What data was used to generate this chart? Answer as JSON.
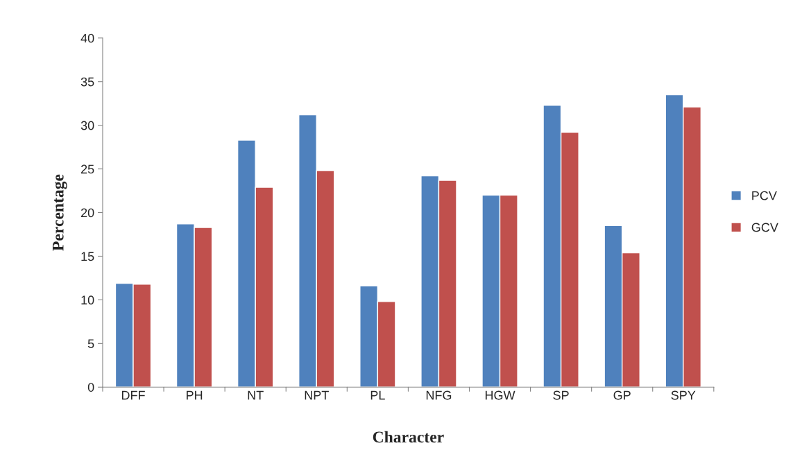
{
  "chart_data": {
    "type": "bar",
    "xlabel": "Character",
    "ylabel": "Percentage",
    "categories": [
      "DFF",
      "PH",
      "NT",
      "NPT",
      "PL",
      "NFG",
      "HGW",
      "SP",
      "GP",
      "SPY"
    ],
    "series": [
      {
        "name": "PCV",
        "color": "#4f81bd",
        "values": [
          11.9,
          18.7,
          28.3,
          31.2,
          11.6,
          24.2,
          22.0,
          32.3,
          18.5,
          33.5
        ]
      },
      {
        "name": "GCV",
        "color": "#c0504d",
        "values": [
          11.8,
          18.3,
          22.9,
          24.8,
          9.8,
          23.7,
          22.0,
          29.2,
          15.4,
          32.1
        ]
      }
    ],
    "ylim": [
      0,
      40
    ],
    "yticks": [
      0,
      5,
      10,
      15,
      20,
      25,
      30,
      35,
      40
    ],
    "grid": false,
    "legend": "right"
  }
}
